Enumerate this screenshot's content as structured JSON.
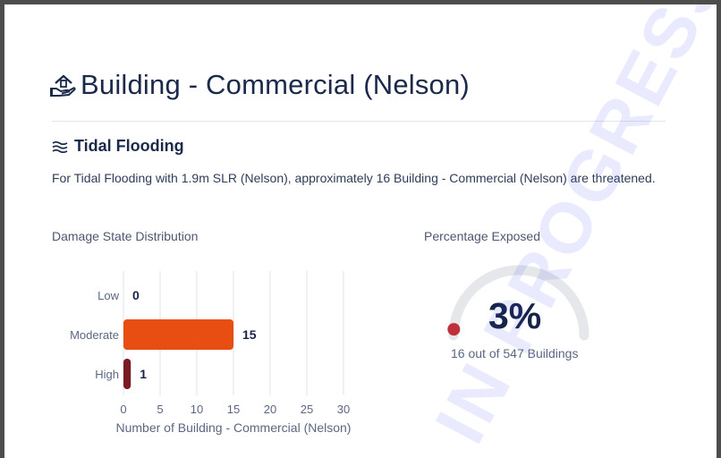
{
  "header": {
    "title": "Building - Commercial (Nelson)",
    "icon": "building-hand-icon"
  },
  "section": {
    "title": "Tidal Flooding",
    "icon": "waves-icon",
    "description": "For Tidal Flooding with 1.9m SLR (Nelson), approximately 16 Building - Commercial (Nelson) are threatened."
  },
  "damage_chart": {
    "label": "Damage State Distribution"
  },
  "exposure": {
    "label": "Percentage Exposed",
    "percent_text": "3%",
    "percent_value": 0.03,
    "subtitle": "16 out of 547 Buildings",
    "track_color": "#e5e7eb",
    "marker_color": "#c0303a"
  },
  "watermark": "IN PROGRESS",
  "chart_data": {
    "type": "bar",
    "orientation": "horizontal",
    "categories": [
      "Low",
      "Moderate",
      "High"
    ],
    "values": [
      0,
      15,
      1
    ],
    "colors": [
      "#e84e12",
      "#e84e12",
      "#7a1a22"
    ],
    "xlabel": "Number of Building - Commercial (Nelson)",
    "ylabel": "",
    "xticks": [
      "0",
      "5",
      "10",
      "15",
      "20",
      "25",
      "30"
    ],
    "xlim": [
      0,
      30
    ],
    "grid": true
  }
}
